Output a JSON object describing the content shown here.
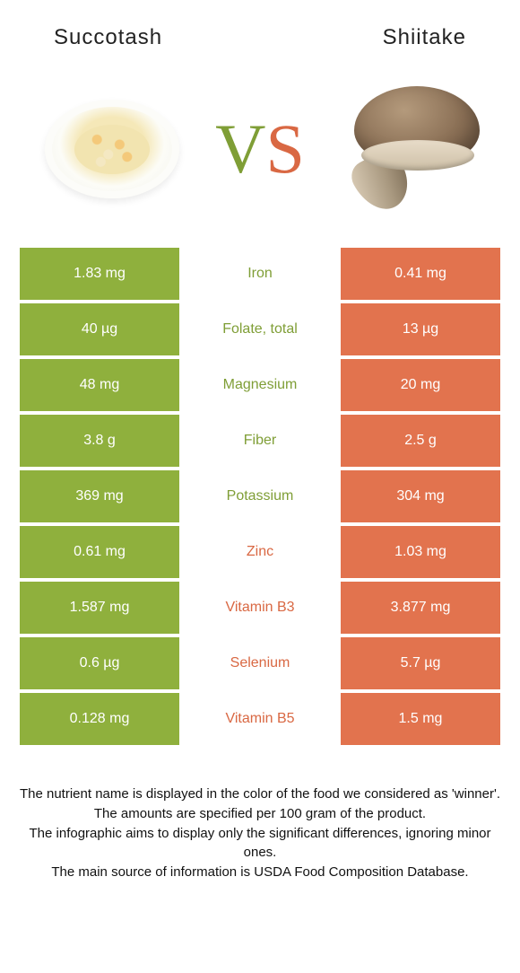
{
  "title_left": "Succotash",
  "title_right": "Shiitake",
  "vs_letters": {
    "v": "V",
    "s": "S"
  },
  "colors": {
    "left_bg": "#8fb03d",
    "right_bg": "#e2734e",
    "left_text": "#7f9e36",
    "right_text": "#d96843",
    "white": "#ffffff",
    "row_gap": "#ffffff"
  },
  "rows": [
    {
      "label": "Iron",
      "left": "1.83 mg",
      "right": "0.41 mg",
      "winner": "left"
    },
    {
      "label": "Folate, total",
      "left": "40 µg",
      "right": "13 µg",
      "winner": "left"
    },
    {
      "label": "Magnesium",
      "left": "48 mg",
      "right": "20 mg",
      "winner": "left"
    },
    {
      "label": "Fiber",
      "left": "3.8 g",
      "right": "2.5 g",
      "winner": "left"
    },
    {
      "label": "Potassium",
      "left": "369 mg",
      "right": "304 mg",
      "winner": "left"
    },
    {
      "label": "Zinc",
      "left": "0.61 mg",
      "right": "1.03 mg",
      "winner": "right"
    },
    {
      "label": "Vitamin B3",
      "left": "1.587 mg",
      "right": "3.877 mg",
      "winner": "right"
    },
    {
      "label": "Selenium",
      "left": "0.6 µg",
      "right": "5.7 µg",
      "winner": "right"
    },
    {
      "label": "Vitamin B5",
      "left": "0.128 mg",
      "right": "1.5 mg",
      "winner": "right"
    }
  ],
  "footer": {
    "line1": "The nutrient name is displayed in the color of the food we considered as 'winner'.",
    "line2": "The amounts are specified per 100 gram of the product.",
    "line3": "The infographic aims to display only the significant differences, ignoring minor ones.",
    "line4": "The main source of information is USDA Food Composition Database."
  }
}
